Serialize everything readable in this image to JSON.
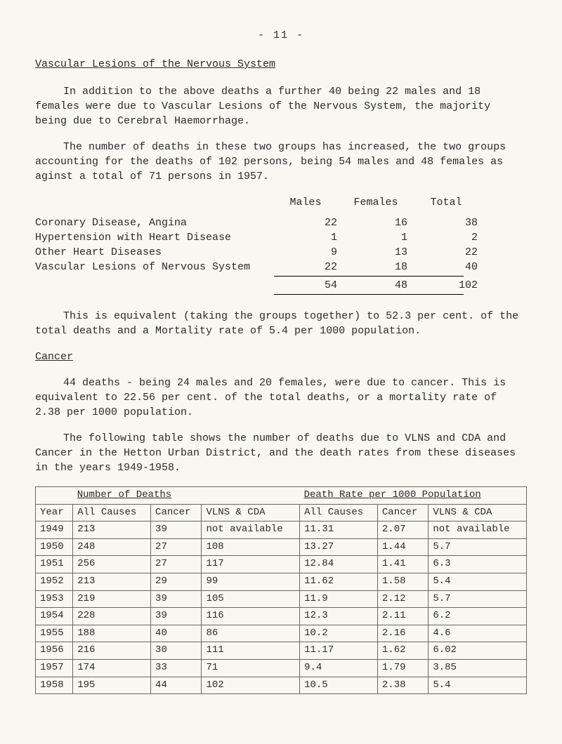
{
  "page_number_line": "- 11 -",
  "title": "Vascular Lesions of the Nervous System",
  "para1": "In addition to the above deaths a further 40 being 22 males and 18 females were due to Vascular Lesions of the Nervous System, the majority being due to Cerebral Haemorrhage.",
  "para2": "The number of deaths in these two groups has increased, the two groups accounting for the deaths of 102 persons, being 54 males and 48 females as aginst a total of 71 persons in 1957.",
  "stats": {
    "header": {
      "males": "Males",
      "females": "Females",
      "total": "Total"
    },
    "rows": [
      {
        "label": "Coronary Disease, Angina",
        "m": "22",
        "f": "16",
        "t": "38"
      },
      {
        "label": "Hypertension with Heart Disease",
        "m": "1",
        "f": "1",
        "t": "2"
      },
      {
        "label": "Other Heart Diseases",
        "m": "9",
        "f": "13",
        "t": "22"
      },
      {
        "label": "Vascular Lesions of Nervous System",
        "m": "22",
        "f": "18",
        "t": "40"
      }
    ],
    "total": {
      "m": "54",
      "f": "48",
      "t": "102"
    }
  },
  "para3": "This is equivalent (taking the groups together) to 52.3 per cent. of the total deaths and a Mortality rate of 5.4 per 1000 population.",
  "cancer_heading": "Cancer",
  "para4": "44 deaths - being 24 males and 20 females, were due to cancer.   This is equivalent to 22.56 per cent. of the total deaths, or a mortality rate of 2.38 per 1000 population.",
  "para5": "The following table shows the number of deaths due to VLNS and CDA and Cancer in the Hetton Urban District, and the death rates from these diseases in the years 1949-1958.",
  "death_table": {
    "group_headers": {
      "left": "Number of Deaths",
      "right": "Death Rate per 1000 Population"
    },
    "sub_headers": {
      "year": "Year",
      "all1": "All Causes",
      "cancer1": "Cancer",
      "vlns1": "VLNS & CDA",
      "all2": "All Causes",
      "cancer2": "Cancer",
      "vlns2": "VLNS & CDA"
    },
    "rows": [
      {
        "year": "1949",
        "all1": "213",
        "cancer1": "39",
        "vlns1": "not available",
        "all2": "11.31",
        "cancer2": "2.07",
        "vlns2": "not available"
      },
      {
        "year": "1950",
        "all1": "248",
        "cancer1": "27",
        "vlns1": "108",
        "all2": "13.27",
        "cancer2": "1.44",
        "vlns2": "5.7"
      },
      {
        "year": "1951",
        "all1": "256",
        "cancer1": "27",
        "vlns1": "117",
        "all2": "12.84",
        "cancer2": "1.41",
        "vlns2": "6.3"
      },
      {
        "year": "1952",
        "all1": "213",
        "cancer1": "29",
        "vlns1": "99",
        "all2": "11.62",
        "cancer2": "1.58",
        "vlns2": "5.4"
      },
      {
        "year": "1953",
        "all1": "219",
        "cancer1": "39",
        "vlns1": "105",
        "all2": "11.9",
        "cancer2": "2.12",
        "vlns2": "5.7"
      },
      {
        "year": "1954",
        "all1": "228",
        "cancer1": "39",
        "vlns1": "116",
        "all2": "12.3",
        "cancer2": "2.11",
        "vlns2": "6.2"
      },
      {
        "year": "1955",
        "all1": "188",
        "cancer1": "40",
        "vlns1": "86",
        "all2": "10.2",
        "cancer2": "2.16",
        "vlns2": "4.6"
      },
      {
        "year": "1956",
        "all1": "216",
        "cancer1": "30",
        "vlns1": "111",
        "all2": "11.17",
        "cancer2": "1.62",
        "vlns2": "6.02"
      },
      {
        "year": "1957",
        "all1": "174",
        "cancer1": "33",
        "vlns1": "71",
        "all2": "9.4",
        "cancer2": "1.79",
        "vlns2": "3.85"
      },
      {
        "year": "1958",
        "all1": "195",
        "cancer1": "44",
        "vlns1": "102",
        "all2": "10.5",
        "cancer2": "2.38",
        "vlns2": "5.4"
      }
    ]
  }
}
